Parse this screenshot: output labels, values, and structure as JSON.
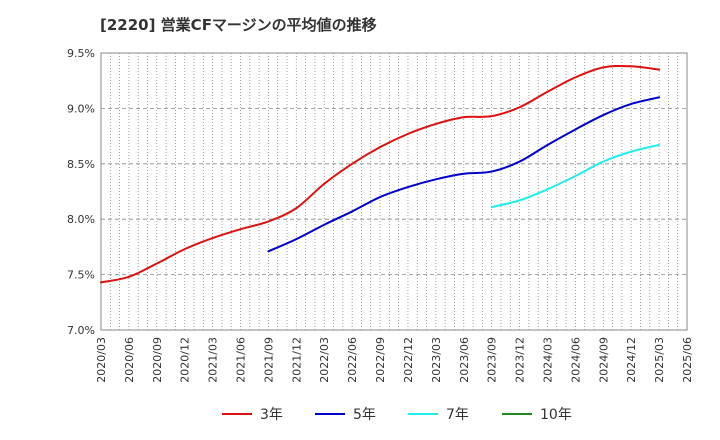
{
  "chart_data": {
    "type": "line",
    "title": "[2220]  営業CFマージンの平均値の推移",
    "xlabel": "",
    "ylabel": "",
    "x": [
      "2020/03",
      "2020/06",
      "2020/09",
      "2020/12",
      "2021/03",
      "2021/06",
      "2021/09",
      "2021/12",
      "2022/03",
      "2022/06",
      "2022/09",
      "2022/12",
      "2023/03",
      "2023/06",
      "2023/09",
      "2023/12",
      "2024/03",
      "2024/06",
      "2024/09",
      "2024/12",
      "2025/03",
      "2025/06"
    ],
    "y_ticks": [
      "7.0%",
      "7.5%",
      "8.0%",
      "8.5%",
      "9.0%",
      "9.5%"
    ],
    "ylim": [
      7.0,
      9.5
    ],
    "grid": true,
    "legend_position": "bottom",
    "series": [
      {
        "name": "3年",
        "color": "#dd1111",
        "values": [
          7.43,
          7.48,
          7.6,
          7.73,
          7.83,
          7.91,
          7.98,
          8.1,
          8.32,
          8.5,
          8.65,
          8.77,
          8.86,
          8.92,
          8.93,
          9.01,
          9.15,
          9.28,
          9.37,
          9.38,
          9.35,
          null
        ]
      },
      {
        "name": "5年",
        "color": "#0000cc",
        "values": [
          null,
          null,
          null,
          null,
          null,
          null,
          7.71,
          7.82,
          7.95,
          8.07,
          8.2,
          8.29,
          8.36,
          8.41,
          8.43,
          8.52,
          8.67,
          8.81,
          8.94,
          9.04,
          9.1,
          null
        ]
      },
      {
        "name": "7年",
        "color": "#22eeee",
        "values": [
          null,
          null,
          null,
          null,
          null,
          null,
          null,
          null,
          null,
          null,
          null,
          null,
          null,
          null,
          8.11,
          8.17,
          8.27,
          8.39,
          8.52,
          8.61,
          8.67,
          null
        ]
      },
      {
        "name": "10年",
        "color": "#228822",
        "values": [
          null,
          null,
          null,
          null,
          null,
          null,
          null,
          null,
          null,
          null,
          null,
          null,
          null,
          null,
          null,
          null,
          null,
          null,
          null,
          null,
          null,
          null
        ]
      }
    ]
  }
}
